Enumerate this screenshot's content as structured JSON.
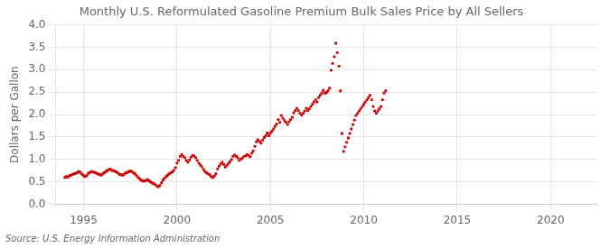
{
  "chart_data": {
    "type": "scatter",
    "title": "Monthly U.S. Reformulated Gasoline Premium Bulk Sales Price by All Sellers",
    "ylabel": "Dollars per Gallon",
    "annotations": [
      "Source: U.S. Energy Information Administration"
    ],
    "color": "#cc0000",
    "marker": "square",
    "grid": true,
    "xlim": [
      1993.5,
      2022.5
    ],
    "xticks": [
      1995,
      2000,
      2005,
      2010,
      2015,
      2020
    ],
    "ylim": [
      0.0,
      4.0
    ],
    "yticks": [
      {
        "value": 0.0,
        "label": "0.0"
      },
      0.5,
      {
        "value": 1.0,
        "label": "1.0"
      },
      1.5,
      {
        "value": 2.0,
        "label": "2.0"
      },
      2.5,
      {
        "value": 3.0,
        "label": "3.0"
      },
      3.5,
      {
        "value": 4.0,
        "label": "4.0"
      }
    ],
    "x": [
      1994.0,
      1994.08,
      1994.17,
      1994.25,
      1994.33,
      1994.42,
      1994.5,
      1994.58,
      1994.67,
      1994.75,
      1994.83,
      1994.92,
      1995.0,
      1995.08,
      1995.17,
      1995.25,
      1995.33,
      1995.42,
      1995.5,
      1995.58,
      1995.67,
      1995.75,
      1995.83,
      1995.92,
      1996.0,
      1996.08,
      1996.17,
      1996.25,
      1996.33,
      1996.42,
      1996.5,
      1996.58,
      1996.67,
      1996.75,
      1996.83,
      1996.92,
      1997.0,
      1997.08,
      1997.17,
      1997.25,
      1997.33,
      1997.42,
      1997.5,
      1997.58,
      1997.67,
      1997.75,
      1997.83,
      1997.92,
      1998.0,
      1998.08,
      1998.17,
      1998.25,
      1998.33,
      1998.42,
      1998.5,
      1998.58,
      1998.67,
      1998.75,
      1998.83,
      1998.92,
      1999.0,
      1999.08,
      1999.17,
      1999.25,
      1999.33,
      1999.42,
      1999.5,
      1999.58,
      1999.67,
      1999.75,
      1999.83,
      1999.92,
      2000.0,
      2000.08,
      2000.17,
      2000.25,
      2000.33,
      2000.42,
      2000.5,
      2000.58,
      2000.67,
      2000.75,
      2000.83,
      2000.92,
      2001.0,
      2001.08,
      2001.17,
      2001.25,
      2001.33,
      2001.42,
      2001.5,
      2001.58,
      2001.67,
      2001.75,
      2001.83,
      2001.92,
      2002.0,
      2002.08,
      2002.17,
      2002.25,
      2002.33,
      2002.42,
      2002.5,
      2002.58,
      2002.67,
      2002.75,
      2002.83,
      2002.92,
      2003.0,
      2003.08,
      2003.17,
      2003.25,
      2003.33,
      2003.42,
      2003.5,
      2003.58,
      2003.67,
      2003.75,
      2003.83,
      2003.92,
      2004.0,
      2004.08,
      2004.17,
      2004.25,
      2004.33,
      2004.42,
      2004.5,
      2004.58,
      2004.67,
      2004.75,
      2004.83,
      2004.92,
      2005.0,
      2005.08,
      2005.17,
      2005.25,
      2005.33,
      2005.42,
      2005.5,
      2005.58,
      2005.67,
      2005.75,
      2005.83,
      2005.92,
      2006.0,
      2006.08,
      2006.17,
      2006.25,
      2006.33,
      2006.42,
      2006.5,
      2006.58,
      2006.67,
      2006.75,
      2006.83,
      2006.92,
      2007.0,
      2007.08,
      2007.17,
      2007.25,
      2007.33,
      2007.42,
      2007.5,
      2007.58,
      2007.67,
      2007.75,
      2007.83,
      2007.92,
      2008.0,
      2008.08,
      2008.17,
      2008.25,
      2008.33,
      2008.42,
      2008.5,
      2008.58,
      2008.67,
      2008.75,
      2008.83,
      2008.92,
      2009.0,
      2009.08,
      2009.17,
      2009.25,
      2009.33,
      2009.42,
      2009.5,
      2009.58,
      2009.67,
      2009.75,
      2009.83,
      2009.92,
      2010.0,
      2010.08,
      2010.17,
      2010.25,
      2010.33,
      2010.42,
      2010.5,
      2010.58,
      2010.67,
      2010.75,
      2010.83,
      2010.92,
      2011.0,
      2011.08,
      2011.17
    ],
    "values": [
      0.6,
      0.62,
      0.61,
      0.64,
      0.65,
      0.67,
      0.68,
      0.69,
      0.71,
      0.73,
      0.71,
      0.67,
      0.64,
      0.62,
      0.64,
      0.69,
      0.71,
      0.73,
      0.72,
      0.71,
      0.7,
      0.68,
      0.67,
      0.65,
      0.67,
      0.7,
      0.72,
      0.75,
      0.77,
      0.79,
      0.76,
      0.75,
      0.74,
      0.72,
      0.7,
      0.67,
      0.66,
      0.65,
      0.67,
      0.7,
      0.71,
      0.73,
      0.74,
      0.73,
      0.7,
      0.68,
      0.64,
      0.6,
      0.57,
      0.54,
      0.52,
      0.52,
      0.53,
      0.55,
      0.53,
      0.5,
      0.48,
      0.46,
      0.44,
      0.41,
      0.39,
      0.42,
      0.48,
      0.54,
      0.58,
      0.62,
      0.65,
      0.68,
      0.7,
      0.72,
      0.76,
      0.82,
      0.92,
      0.98,
      1.07,
      1.11,
      1.07,
      1.04,
      0.98,
      0.94,
      0.99,
      1.05,
      1.09,
      1.08,
      1.04,
      0.98,
      0.92,
      0.88,
      0.84,
      0.78,
      0.73,
      0.7,
      0.68,
      0.66,
      0.62,
      0.6,
      0.63,
      0.68,
      0.79,
      0.85,
      0.9,
      0.94,
      0.89,
      0.83,
      0.87,
      0.91,
      0.95,
      1.0,
      1.07,
      1.1,
      1.07,
      1.04,
      0.98,
      1.01,
      1.03,
      1.07,
      1.08,
      1.11,
      1.09,
      1.06,
      1.14,
      1.19,
      1.29,
      1.39,
      1.44,
      1.4,
      1.36,
      1.43,
      1.49,
      1.53,
      1.59,
      1.53,
      1.59,
      1.63,
      1.68,
      1.74,
      1.79,
      1.89,
      1.83,
      1.98,
      1.92,
      1.87,
      1.83,
      1.78,
      1.84,
      1.89,
      1.94,
      2.04,
      2.09,
      2.14,
      2.09,
      2.03,
      1.99,
      2.03,
      2.08,
      2.14,
      2.09,
      2.13,
      2.18,
      2.23,
      2.28,
      2.33,
      2.28,
      2.38,
      2.43,
      2.48,
      2.54,
      2.48,
      2.49,
      2.53,
      2.59,
      2.99,
      3.14,
      3.29,
      3.59,
      3.38,
      3.08,
      2.53,
      1.58,
      1.18,
      1.28,
      1.38,
      1.48,
      1.58,
      1.68,
      1.78,
      1.88,
      1.98,
      2.03,
      2.08,
      2.13,
      2.18,
      2.23,
      2.28,
      2.33,
      2.38,
      2.43,
      2.33,
      2.18,
      2.08,
      2.03,
      2.08,
      2.13,
      2.18,
      2.33,
      2.48,
      2.53
    ]
  }
}
